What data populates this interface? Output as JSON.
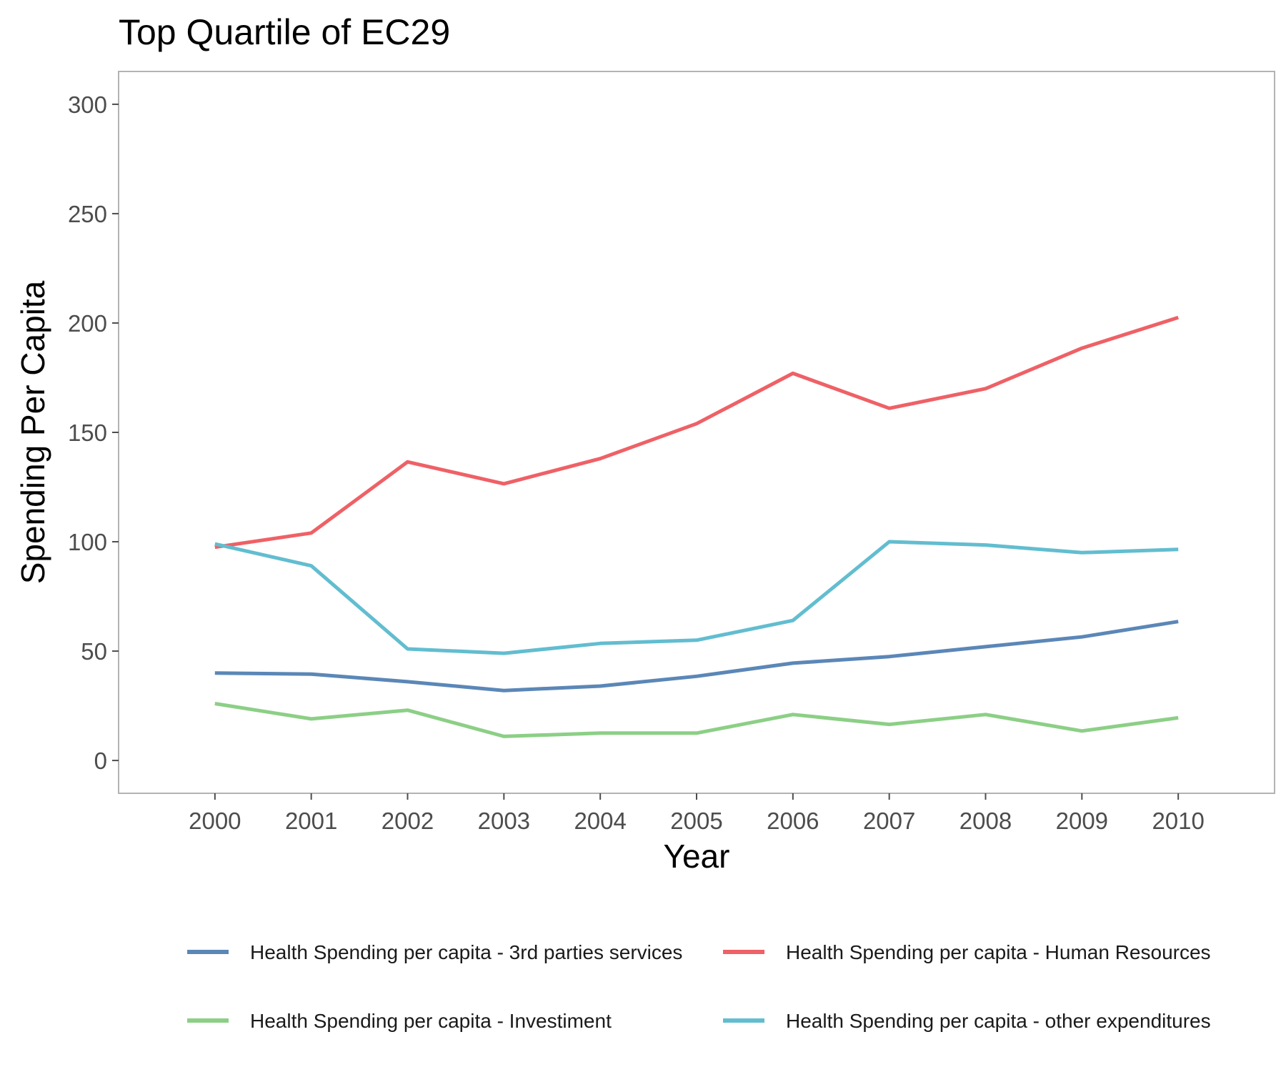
{
  "chart_data": {
    "type": "line",
    "title": "Top Quartile of EC29",
    "xlabel": "Year",
    "ylabel": "Spending Per Capita",
    "x": [
      2000,
      2001,
      2002,
      2003,
      2004,
      2005,
      2006,
      2007,
      2008,
      2009,
      2010
    ],
    "x_tick_labels": [
      "2000",
      "2001",
      "2002",
      "2003",
      "2004",
      "2005",
      "2006",
      "2007",
      "2008",
      "2009",
      "2010"
    ],
    "xlim": [
      1999,
      2011
    ],
    "ylim": [
      -15,
      315
    ],
    "y_ticks": [
      0,
      50,
      100,
      150,
      200,
      250,
      300
    ],
    "grid": false,
    "legend_position": "bottom",
    "series": [
      {
        "name": "Health Spending per capita - 3rd parties services",
        "color": "#5b87b7",
        "values": [
          40,
          39.5,
          36,
          32,
          34,
          38.5,
          44.5,
          47.5,
          52,
          56.5,
          63.5
        ]
      },
      {
        "name": "Health Spending per capita - Human Resources",
        "color": "#ee6166",
        "values": [
          97.5,
          104,
          136.5,
          126.5,
          138,
          154,
          177,
          161,
          170,
          188.5,
          202.5
        ]
      },
      {
        "name": "Health Spending per capita - Investiment",
        "color": "#8ccf86",
        "values": [
          26,
          19,
          23,
          11,
          12.5,
          12.5,
          21,
          16.5,
          21,
          13.5,
          19.5
        ]
      },
      {
        "name": "Health Spending per capita - other expenditures",
        "color": "#62bdd0",
        "values": [
          99,
          89,
          51,
          49,
          53.5,
          55,
          64,
          100,
          98.5,
          95,
          96.5
        ]
      }
    ]
  }
}
